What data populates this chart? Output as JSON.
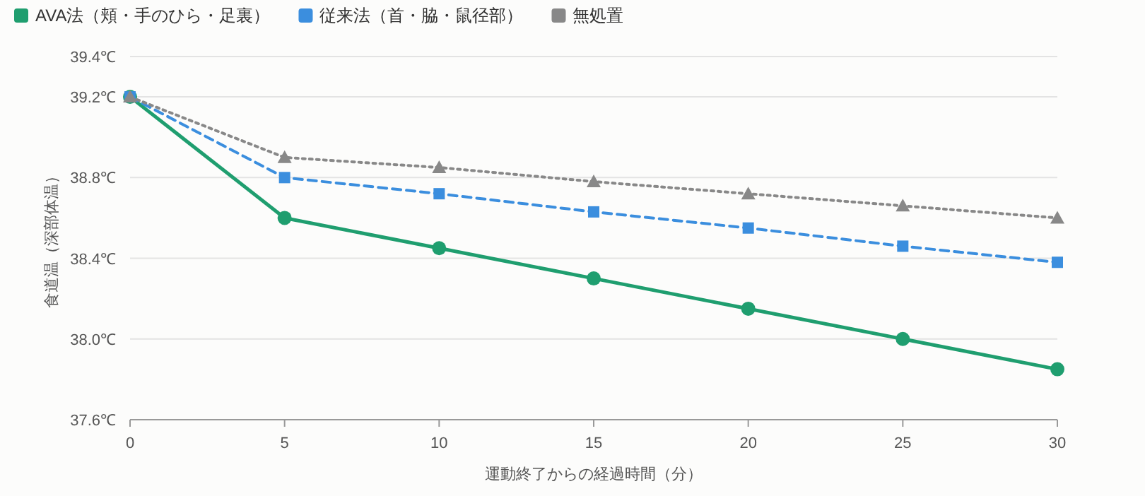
{
  "chart_data": {
    "type": "line",
    "xlabel": "運動終了からの経過時間（分）",
    "ylabel": "食道温（深部体温）",
    "x": [
      0,
      5,
      10,
      15,
      20,
      25,
      30
    ],
    "series": [
      {
        "name": "AVA法（頬・手のひら・足裏）",
        "color": "#1f9e6f",
        "marker": "circle",
        "line_style": "solid",
        "values": [
          39.2,
          38.6,
          38.45,
          38.3,
          38.15,
          38.0,
          37.85
        ]
      },
      {
        "name": "従来法（首・脇・鼠径部）",
        "color": "#3b8ede",
        "marker": "square",
        "line_style": "dashed",
        "values": [
          39.2,
          38.8,
          38.72,
          38.63,
          38.55,
          38.46,
          38.38
        ]
      },
      {
        "name": "無処置",
        "color": "#888888",
        "marker": "triangle",
        "line_style": "dotted",
        "values": [
          39.2,
          38.9,
          38.85,
          38.78,
          38.72,
          38.66,
          38.6
        ]
      }
    ],
    "xlim": [
      0,
      30
    ],
    "xticks": [
      0,
      5,
      10,
      15,
      20,
      25,
      30
    ],
    "ylim": [
      37.6,
      39.4
    ],
    "yticks": [
      {
        "value": 37.6,
        "label": "37.6℃"
      },
      {
        "value": 38.0,
        "label": "38.0℃"
      },
      {
        "value": 38.4,
        "label": "38.4℃"
      },
      {
        "value": 38.8,
        "label": "38.8℃"
      },
      {
        "value": 39.2,
        "label": "39.2℃"
      },
      {
        "value": 39.4,
        "label": "39.4℃"
      }
    ],
    "grid": "y",
    "legend": "top left"
  }
}
